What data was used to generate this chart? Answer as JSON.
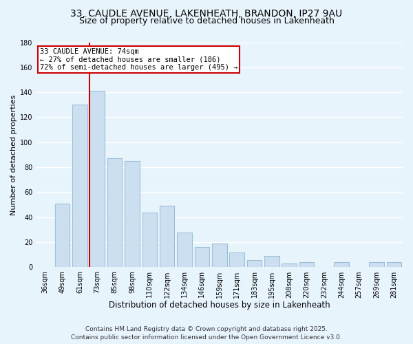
{
  "title_line1": "33, CAUDLE AVENUE, LAKENHEATH, BRANDON, IP27 9AU",
  "title_line2": "Size of property relative to detached houses in Lakenheath",
  "categories": [
    "36sqm",
    "49sqm",
    "61sqm",
    "73sqm",
    "85sqm",
    "98sqm",
    "110sqm",
    "122sqm",
    "134sqm",
    "146sqm",
    "159sqm",
    "171sqm",
    "183sqm",
    "195sqm",
    "208sqm",
    "220sqm",
    "232sqm",
    "244sqm",
    "257sqm",
    "269sqm",
    "281sqm"
  ],
  "values": [
    0,
    51,
    130,
    141,
    87,
    85,
    44,
    49,
    28,
    16,
    19,
    12,
    6,
    9,
    3,
    4,
    0,
    4,
    0,
    4,
    4
  ],
  "bar_color": "#ccdff0",
  "bar_edge_color": "#9bbfd8",
  "vline_x_index": 3,
  "vline_color": "#cc0000",
  "annotation_text": "33 CAUDLE AVENUE: 74sqm\n← 27% of detached houses are smaller (186)\n72% of semi-detached houses are larger (495) →",
  "annotation_box_color": "white",
  "annotation_box_edge": "#cc0000",
  "xlabel": "Distribution of detached houses by size in Lakenheath",
  "ylabel": "Number of detached properties",
  "ylim": [
    0,
    180
  ],
  "yticks": [
    0,
    20,
    40,
    60,
    80,
    100,
    120,
    140,
    160,
    180
  ],
  "footer_line1": "Contains HM Land Registry data © Crown copyright and database right 2025.",
  "footer_line2": "Contains public sector information licensed under the Open Government Licence v3.0.",
  "bg_color": "#e8f4fc",
  "grid_color": "white",
  "title1_fontsize": 10,
  "title2_fontsize": 9,
  "xlabel_fontsize": 8.5,
  "ylabel_fontsize": 8,
  "tick_fontsize": 7,
  "footer_fontsize": 6.5,
  "ann_fontsize": 7.5
}
